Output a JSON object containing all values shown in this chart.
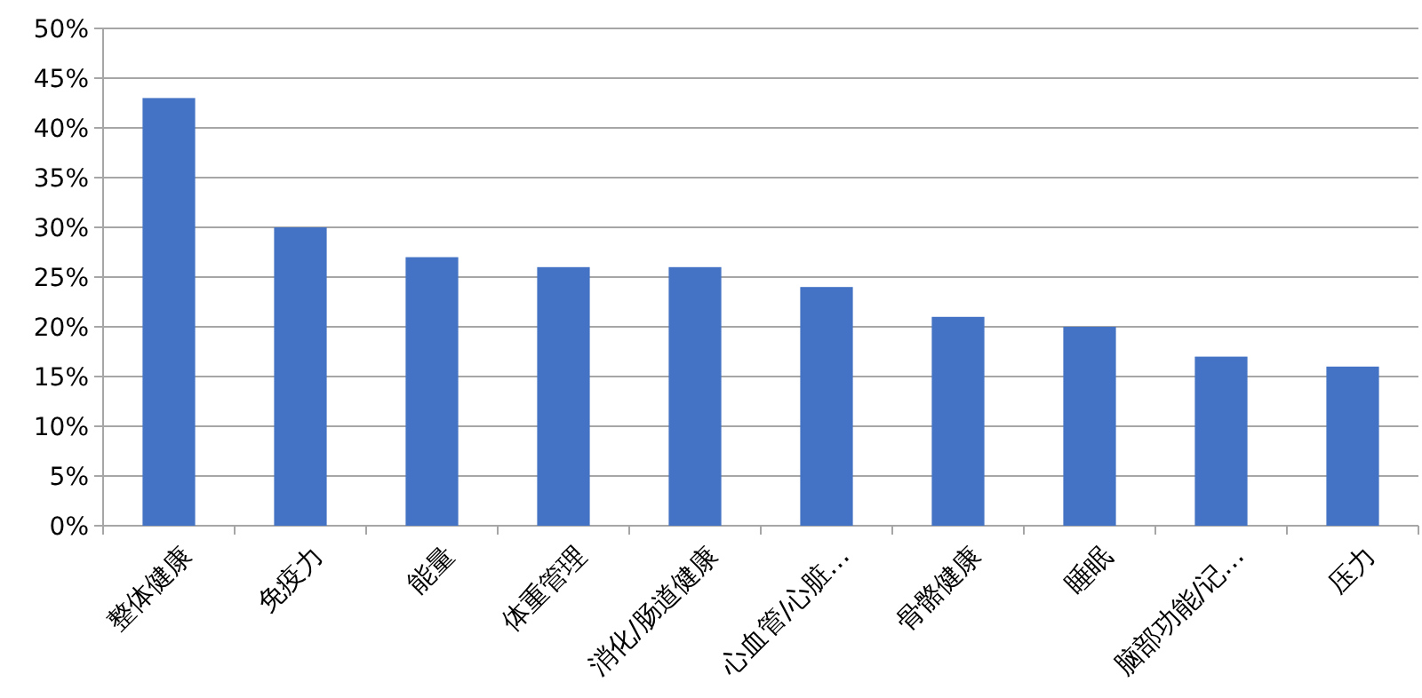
{
  "chart_data": {
    "type": "bar",
    "categories": [
      "整体健康",
      "免疫力",
      "能量",
      "体重管理",
      "消化/肠道健康",
      "心血管/心脏…",
      "骨骼健康",
      "睡眠",
      "脑部功能/记…",
      "压力"
    ],
    "values": [
      43,
      30,
      27,
      26,
      26,
      24,
      21,
      20,
      17,
      16
    ],
    "color": "#4472c4",
    "ylim": [
      0,
      50
    ],
    "yticks": [
      {
        "value": 0,
        "label": "0%"
      },
      {
        "value": 5,
        "label": "5%"
      },
      {
        "value": 10,
        "label": "10%"
      },
      {
        "value": 15,
        "label": "15%"
      },
      {
        "value": 20,
        "label": "20%"
      },
      {
        "value": 25,
        "label": "25%"
      },
      {
        "value": 30,
        "label": "30%"
      },
      {
        "value": 35,
        "label": "35%"
      },
      {
        "value": 40,
        "label": "40%"
      },
      {
        "value": 45,
        "label": "45%"
      },
      {
        "value": 50,
        "label": "50%"
      }
    ],
    "grid": "y"
  }
}
